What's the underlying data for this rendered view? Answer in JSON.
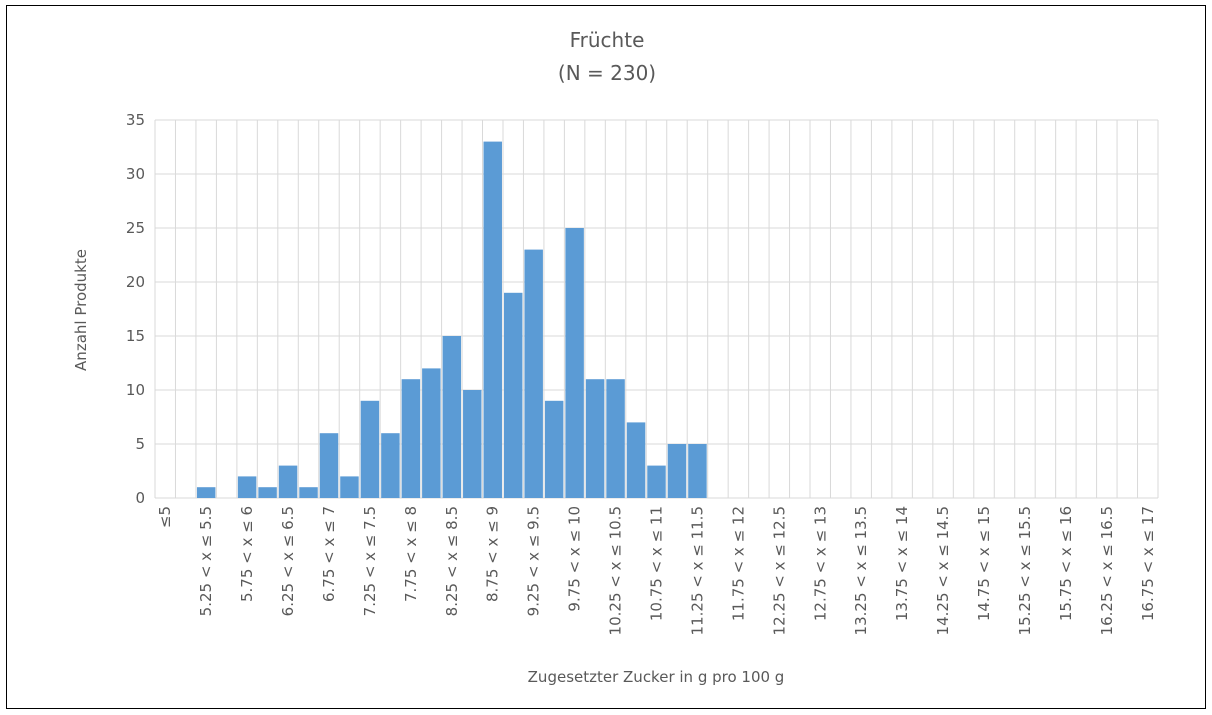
{
  "chart_data": {
    "type": "bar",
    "title": "Früchte",
    "subtitle": "(N = 230)",
    "x_label": "Zugesetzter Zucker in g pro 100 g",
    "y_label": "Anzahl Produkte",
    "categories": [
      "≤5",
      null,
      "5.25 < x ≤ 5.5",
      null,
      "5.75 < x ≤ 6",
      null,
      "6.25 < x ≤ 6.5",
      null,
      "6.75 < x ≤ 7",
      null,
      "7.25 < x ≤ 7.5",
      null,
      "7.75 < x ≤ 8",
      null,
      "8.25 < x ≤ 8.5",
      null,
      "8.75 < x ≤ 9",
      null,
      "9.25 < x ≤ 9.5",
      null,
      "9.75 < x ≤ 10",
      null,
      "10.25 < x ≤ 10.5",
      null,
      "10.75 < x ≤ 11",
      null,
      "11.25 < x ≤ 11.5",
      null,
      "11.75 < x ≤ 12",
      null,
      "12.25 < x ≤ 12.5",
      null,
      "12.75 < x ≤ 13",
      null,
      "13.25 < x ≤ 13.5",
      null,
      "13.75 < x ≤ 14",
      null,
      "14.25 < x ≤ 14.5",
      null,
      "14.75 < x ≤ 15",
      null,
      "15.25 < x ≤ 15.5",
      null,
      "15.75 < x ≤ 16",
      null,
      "16.25 < x ≤ 16.5",
      null,
      "16.75 < x ≤ 17"
    ],
    "values": [
      0,
      0,
      1,
      0,
      2,
      1,
      3,
      1,
      6,
      2,
      9,
      6,
      11,
      12,
      15,
      10,
      33,
      19,
      23,
      9,
      25,
      11,
      11,
      7,
      3,
      5,
      5,
      0,
      0,
      0,
      0,
      0,
      0,
      0,
      0,
      0,
      0,
      0,
      0,
      0,
      0,
      0,
      0,
      0,
      0,
      0,
      0,
      0,
      0
    ],
    "color": "#5b9bd5",
    "ylim": [
      0,
      35
    ],
    "yticks": [
      0,
      5,
      10,
      15,
      20,
      25,
      30,
      35
    ],
    "grid": true
  }
}
